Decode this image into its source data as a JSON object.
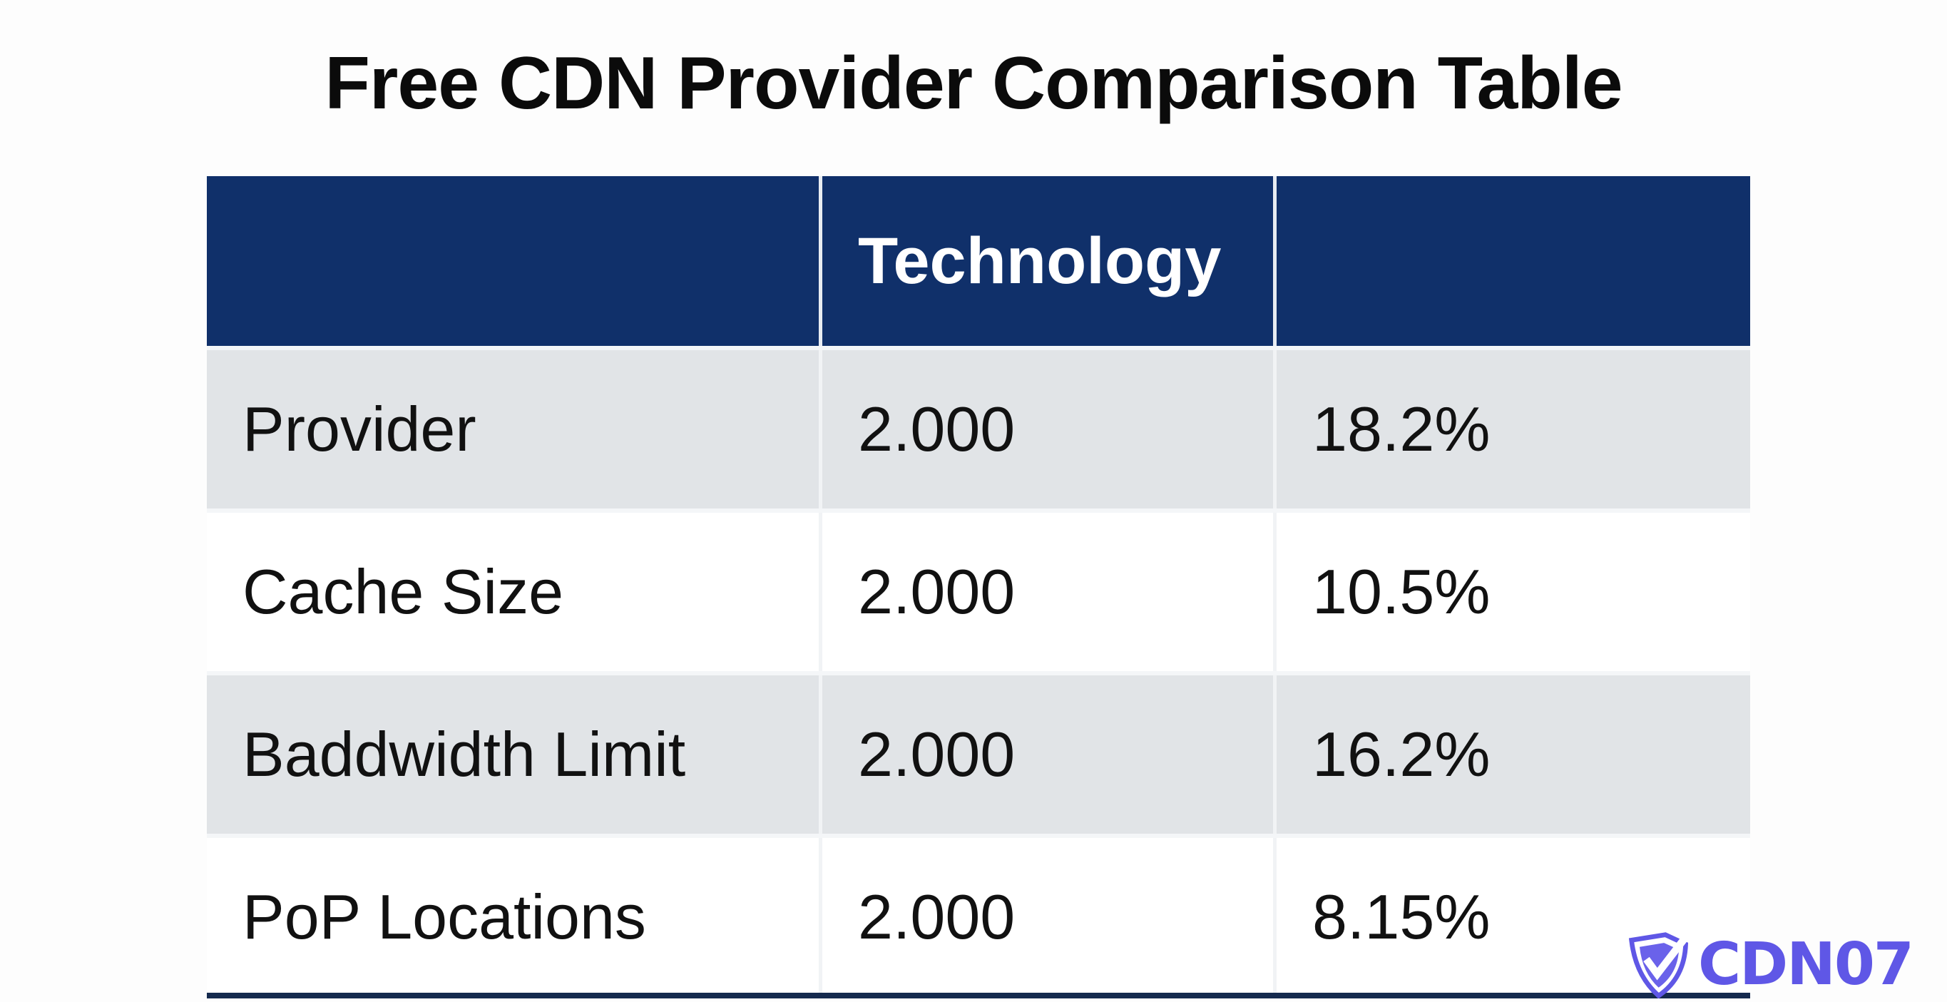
{
  "title": "Free CDN Provider Comparison Table",
  "table": {
    "headers": [
      "",
      "Technology",
      ""
    ],
    "rows": [
      {
        "label": "Provider",
        "value": "2.000",
        "percent": "18.2%"
      },
      {
        "label": "Cache Size",
        "value": "2.000",
        "percent": "10.5%"
      },
      {
        "label": "Baddwidth Limit",
        "value": "2.000",
        "percent": "16.2%"
      },
      {
        "label": "PoP Locations",
        "value": "2.000",
        "percent": "8.15%"
      }
    ]
  },
  "colors": {
    "header_bg": "#10306a",
    "alt_row_bg": "#e1e4e7",
    "logo": "#5f57e6"
  },
  "logo": {
    "text": "CDN07",
    "icon": "shield-check-icon"
  }
}
